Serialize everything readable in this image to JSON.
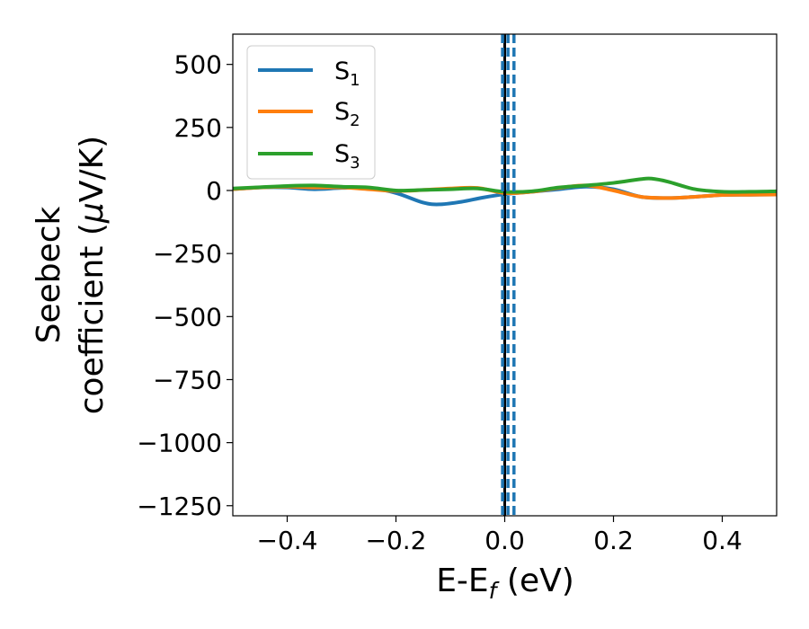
{
  "chart_data": {
    "type": "line",
    "xlabel": "E-E",
    "xlabel_sub": "f",
    "xlabel_unit": " (eV)",
    "ylabel_line1": "Seebeck",
    "ylabel_line2": "coefficient  (",
    "ylabel_mu": "μ",
    "ylabel_unit": "V/K)",
    "xlim": [
      -0.5,
      0.5
    ],
    "ylim": [
      -1290,
      620
    ],
    "xticks": [
      -0.4,
      -0.2,
      0.0,
      0.2,
      0.4
    ],
    "xtick_labels": [
      "−0.4",
      "−0.2",
      "0.0",
      "0.2",
      "0.4"
    ],
    "yticks": [
      500,
      250,
      0,
      -250,
      -500,
      -750,
      -1000,
      -1250
    ],
    "ytick_labels": [
      "500",
      "250",
      "0",
      "−250",
      "−500",
      "−750",
      "−1000",
      "−1250"
    ],
    "legend_position": "upper-left",
    "series": [
      {
        "name": "S",
        "name_sub": "1",
        "color": "#1f77b4",
        "x": [
          -0.5,
          -0.45,
          -0.4,
          -0.35,
          -0.3,
          -0.25,
          -0.2,
          -0.15,
          -0.12,
          -0.08,
          -0.04,
          0.0,
          0.05,
          0.1,
          0.15,
          0.2,
          0.25,
          0.3,
          0.35,
          0.4,
          0.45,
          0.5
        ],
        "y": [
          5,
          12,
          12,
          5,
          10,
          10,
          -10,
          -48,
          -55,
          -45,
          -28,
          -15,
          -5,
          5,
          15,
          5,
          -25,
          -30,
          -25,
          -18,
          -17,
          -16
        ]
      },
      {
        "name": "S",
        "name_sub": "2",
        "color": "#ff7f0e",
        "x": [
          -0.5,
          -0.45,
          -0.4,
          -0.35,
          -0.3,
          -0.25,
          -0.2,
          -0.15,
          -0.1,
          -0.05,
          0.0,
          0.05,
          0.1,
          0.15,
          0.2,
          0.25,
          0.3,
          0.35,
          0.4,
          0.45,
          0.5
        ],
        "y": [
          5,
          12,
          15,
          12,
          12,
          5,
          -2,
          2,
          8,
          10,
          -10,
          -5,
          10,
          20,
          0,
          -25,
          -30,
          -25,
          -18,
          -17,
          -16
        ]
      },
      {
        "name": "S",
        "name_sub": "3",
        "color": "#2ca02c",
        "x": [
          -0.5,
          -0.45,
          -0.4,
          -0.35,
          -0.3,
          -0.25,
          -0.2,
          -0.15,
          -0.1,
          -0.05,
          0.0,
          0.05,
          0.1,
          0.15,
          0.2,
          0.25,
          0.27,
          0.3,
          0.35,
          0.4,
          0.45,
          0.5
        ],
        "y": [
          8,
          13,
          18,
          20,
          15,
          12,
          0,
          2,
          5,
          8,
          -5,
          -3,
          12,
          20,
          30,
          45,
          47,
          35,
          5,
          -5,
          -5,
          -3
        ]
      }
    ],
    "vlines": [
      {
        "x": 0.0,
        "color": "#000000",
        "style": "solid"
      },
      {
        "x": -0.004,
        "color": "#1f77b4",
        "style": "dashed"
      },
      {
        "x": 0.006,
        "color": "#1f77b4",
        "style": "dashed"
      },
      {
        "x": 0.017,
        "color": "#1f77b4",
        "style": "dashed"
      }
    ]
  }
}
